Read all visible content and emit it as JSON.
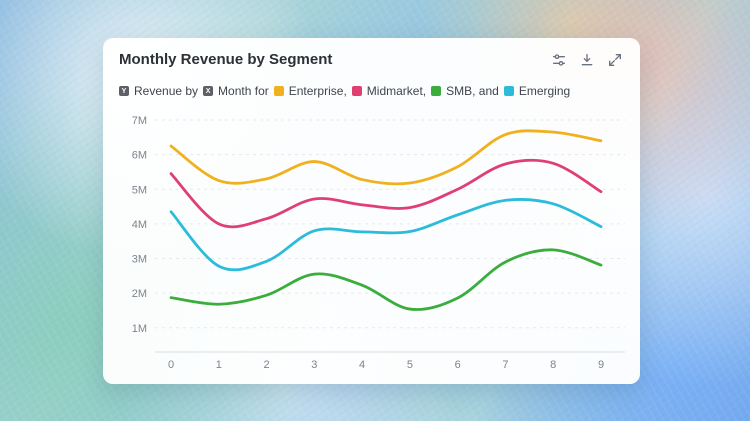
{
  "header": {
    "title": "Monthly Revenue by Segment"
  },
  "legend": {
    "y_chip": "Y",
    "y_label": "Revenue by",
    "x_chip": "X",
    "x_label": "Month for",
    "items": [
      {
        "label": "Enterprise,",
        "color": "#f0b11f"
      },
      {
        "label": "Midmarket,",
        "color": "#df3f72"
      },
      {
        "label": "SMB, and",
        "color": "#3aad3c"
      },
      {
        "label": "Emerging",
        "color": "#2cbcd9"
      }
    ]
  },
  "toolbar": {
    "icons": [
      "filters-icon",
      "download-icon",
      "expand-icon"
    ]
  },
  "chart_data": {
    "type": "line",
    "title": "Monthly Revenue by Segment",
    "xlabel": "Month",
    "ylabel": "Revenue",
    "x": [
      0,
      1,
      2,
      3,
      4,
      5,
      6,
      7,
      8,
      9
    ],
    "x_tick_labels": [
      "0",
      "1",
      "2",
      "3",
      "4",
      "5",
      "6",
      "7",
      "8",
      "9"
    ],
    "y_ticks": [
      1000000,
      2000000,
      3000000,
      4000000,
      5000000,
      6000000,
      7000000
    ],
    "y_tick_labels": [
      "1M",
      "2M",
      "3M",
      "4M",
      "5M",
      "6M",
      "7M"
    ],
    "ylim": [
      300000,
      7000000
    ],
    "grid": true,
    "legend_position": "top",
    "series": [
      {
        "name": "Enterprise",
        "color": "#f0b11f",
        "values": [
          6250000,
          5250000,
          5300000,
          5800000,
          5280000,
          5180000,
          5650000,
          6580000,
          6650000,
          6400000
        ]
      },
      {
        "name": "Midmarket",
        "color": "#df3f72",
        "values": [
          5450000,
          4000000,
          4150000,
          4720000,
          4550000,
          4470000,
          5000000,
          5730000,
          5750000,
          4930000
        ]
      },
      {
        "name": "SMB",
        "color": "#3aad3c",
        "values": [
          1870000,
          1680000,
          1940000,
          2550000,
          2230000,
          1540000,
          1860000,
          2900000,
          3250000,
          2810000
        ]
      },
      {
        "name": "Emerging",
        "color": "#2cbcd9",
        "values": [
          4350000,
          2780000,
          2920000,
          3800000,
          3770000,
          3780000,
          4260000,
          4680000,
          4580000,
          3920000
        ]
      }
    ]
  }
}
